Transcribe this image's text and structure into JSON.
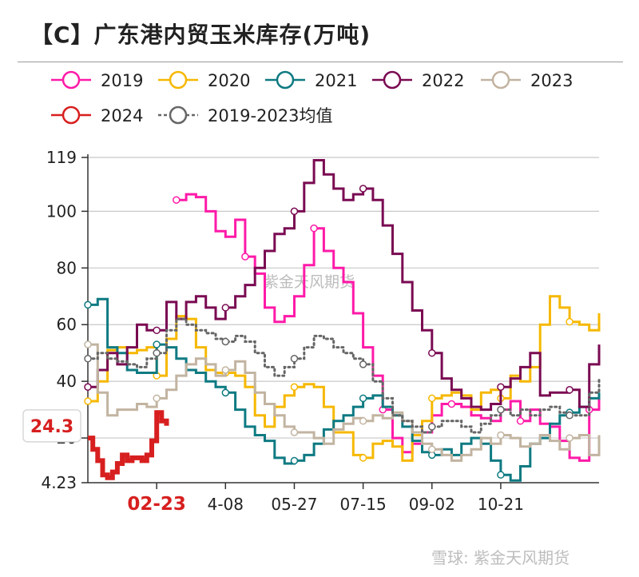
{
  "title": "【C】广东港内贸玉米库存(万吨)",
  "watermark": {
    "center_text": "紫金天风期货",
    "corner_text": "雪球: 紫金天风期货"
  },
  "chart_data": {
    "type": "line",
    "title": "【C】广东港内贸玉米库存(万吨)",
    "xlabel": "",
    "ylabel": "",
    "ylim": [
      4.23,
      119
    ],
    "yticks": [
      {
        "value": 119,
        "label": "119"
      },
      {
        "value": 100,
        "label": "100"
      },
      {
        "value": 80,
        "label": "80"
      },
      {
        "value": 60,
        "label": "60"
      },
      {
        "value": 40,
        "label": "40"
      },
      {
        "value": 20,
        "label": "20"
      },
      {
        "value": 4.23,
        "label": "4.23"
      }
    ],
    "xlim": [
      0,
      52
    ],
    "xticks": [
      {
        "pos": 7,
        "label": "02-23",
        "highlight": true
      },
      {
        "pos": 14,
        "label": "4-08",
        "highlight": false
      },
      {
        "pos": 21,
        "label": "05-27",
        "highlight": false
      },
      {
        "pos": 28,
        "label": "07-15",
        "highlight": false
      },
      {
        "pos": 35,
        "label": "09-02",
        "highlight": false
      },
      {
        "pos": 42,
        "label": "10-21",
        "highlight": false
      }
    ],
    "grid": true,
    "legend_position": "top",
    "callout": {
      "label": "24.3",
      "value": 24.3
    },
    "series": [
      {
        "name": "2019",
        "color": "#ff1aa8",
        "dotted": false,
        "width": 3,
        "x": [
          9,
          10,
          11,
          12,
          13,
          14,
          15,
          16,
          17,
          18,
          19,
          20,
          21,
          22,
          23,
          24,
          25,
          26,
          27,
          28,
          29,
          30,
          31,
          32,
          33,
          34,
          35,
          36,
          37,
          38,
          39,
          40,
          41,
          42,
          43,
          44,
          45,
          46,
          47,
          48,
          49,
          50,
          51,
          52
        ],
        "y": [
          104,
          106,
          105,
          100,
          93,
          91,
          97,
          84,
          78,
          66,
          61,
          63,
          70,
          81,
          94,
          86,
          80,
          75,
          64,
          52,
          42,
          30,
          20,
          15,
          18,
          22,
          28,
          32,
          32,
          31,
          28,
          27,
          26,
          30,
          33,
          26,
          30,
          25,
          24,
          19,
          13,
          12,
          30,
          35
        ]
      },
      {
        "name": "2020",
        "color": "#f6b800",
        "dotted": false,
        "width": 3,
        "x": [
          0,
          1,
          2,
          3,
          4,
          5,
          6,
          7,
          8,
          9,
          10,
          11,
          12,
          13,
          14,
          15,
          16,
          17,
          18,
          19,
          20,
          21,
          22,
          23,
          24,
          25,
          26,
          27,
          28,
          29,
          30,
          31,
          32,
          33,
          34,
          35,
          36,
          37,
          38,
          39,
          40,
          41,
          42,
          43,
          44,
          45,
          46,
          47,
          48,
          49,
          50,
          51,
          52
        ],
        "y": [
          33,
          40,
          51,
          52,
          50,
          51,
          52,
          42,
          55,
          63,
          62,
          52,
          44,
          43,
          43,
          42,
          38,
          28,
          24,
          31,
          35,
          38,
          39,
          38,
          31,
          22,
          22,
          14,
          13,
          18,
          19,
          17,
          12,
          21,
          26,
          34,
          35,
          36,
          35,
          30,
          36,
          37,
          34,
          42,
          40,
          45,
          60,
          70,
          66,
          61,
          60,
          58,
          64
        ]
      },
      {
        "name": "2021",
        "color": "#0e7a82",
        "dotted": false,
        "width": 3,
        "x": [
          0,
          1,
          2,
          3,
          4,
          5,
          6,
          7,
          8,
          9,
          10,
          11,
          12,
          13,
          14,
          15,
          16,
          17,
          18,
          19,
          20,
          21,
          22,
          23,
          24,
          25,
          26,
          27,
          28,
          29,
          30,
          31,
          32,
          33,
          34,
          35,
          36,
          37,
          38,
          39,
          40,
          41,
          42,
          43,
          44,
          45,
          46,
          47,
          48,
          49,
          50,
          51,
          52
        ],
        "y": [
          67,
          69,
          52,
          50,
          44,
          43,
          43,
          53,
          52,
          48,
          44,
          43,
          40,
          38,
          36,
          30,
          24,
          21,
          19,
          13,
          11,
          12,
          14,
          18,
          23,
          26,
          28,
          31,
          34,
          35,
          31,
          28,
          24,
          19,
          15,
          14,
          16,
          14,
          18,
          20,
          18,
          12,
          7,
          5,
          10,
          18,
          20,
          25,
          28,
          29,
          31,
          34,
          36
        ]
      },
      {
        "name": "2022",
        "color": "#7a0a52",
        "dotted": false,
        "width": 3,
        "x": [
          0,
          1,
          2,
          3,
          4,
          5,
          6,
          7,
          8,
          9,
          10,
          11,
          12,
          13,
          14,
          15,
          16,
          17,
          18,
          19,
          20,
          21,
          22,
          23,
          24,
          25,
          26,
          27,
          28,
          29,
          30,
          31,
          32,
          33,
          34,
          35,
          36,
          37,
          38,
          39,
          40,
          41,
          42,
          43,
          44,
          45,
          46,
          47,
          48,
          49,
          50,
          51,
          52
        ],
        "y": [
          38,
          44,
          50,
          46,
          52,
          60,
          58,
          58,
          68,
          62,
          68,
          70,
          66,
          62,
          66,
          70,
          74,
          80,
          86,
          92,
          94,
          100,
          110,
          118,
          113,
          108,
          104,
          106,
          108,
          104,
          95,
          85,
          75,
          65,
          58,
          50,
          41,
          37,
          34,
          31,
          30,
          32,
          38,
          41,
          45,
          50,
          35,
          36,
          36,
          37,
          31,
          46,
          53
        ]
      },
      {
        "name": "2023",
        "color": "#c2b4a1",
        "dotted": false,
        "width": 3,
        "x": [
          0,
          1,
          2,
          3,
          4,
          5,
          6,
          7,
          8,
          9,
          10,
          11,
          12,
          13,
          14,
          15,
          16,
          17,
          18,
          19,
          20,
          21,
          22,
          23,
          24,
          25,
          26,
          27,
          28,
          29,
          30,
          31,
          32,
          33,
          34,
          35,
          36,
          37,
          38,
          39,
          40,
          41,
          42,
          43,
          44,
          45,
          46,
          47,
          48,
          49,
          50,
          51,
          52
        ],
        "y": [
          53,
          36,
          28,
          30,
          30,
          32,
          31,
          34,
          37,
          42,
          46,
          48,
          46,
          42,
          44,
          47,
          43,
          36,
          32,
          28,
          24,
          22,
          22,
          20,
          18,
          23,
          25,
          27,
          26,
          28,
          27,
          29,
          26,
          22,
          18,
          16,
          14,
          12,
          14,
          16,
          20,
          18,
          21,
          20,
          17,
          18,
          21,
          19,
          16,
          20,
          21,
          14,
          21
        ]
      },
      {
        "name": "2024",
        "color": "#d71f1f",
        "dotted": false,
        "width": 6,
        "x": [
          0,
          0.5,
          1,
          1.5,
          2,
          2.5,
          3,
          3.5,
          4,
          4.5,
          5,
          5.5,
          6,
          6.5,
          7,
          7.5,
          8
        ],
        "y": [
          20,
          16,
          12,
          7,
          6,
          8,
          11,
          14,
          12,
          13,
          13,
          12,
          14,
          19,
          29,
          26,
          24.3
        ]
      },
      {
        "name": "2019-2023均值",
        "color": "#666666",
        "dotted": true,
        "width": 3,
        "x": [
          0,
          1,
          2,
          3,
          4,
          5,
          6,
          7,
          8,
          9,
          10,
          11,
          12,
          13,
          14,
          15,
          16,
          17,
          18,
          19,
          20,
          21,
          22,
          23,
          24,
          25,
          26,
          27,
          28,
          29,
          30,
          31,
          32,
          33,
          34,
          35,
          36,
          37,
          38,
          39,
          40,
          41,
          42,
          43,
          44,
          45,
          46,
          47,
          48,
          49,
          50,
          51,
          52
        ],
        "y": [
          48,
          50,
          48,
          47,
          46,
          45,
          48,
          50,
          58,
          62,
          60,
          58,
          57,
          55,
          54,
          56,
          54,
          50,
          45,
          42,
          45,
          48,
          52,
          56,
          55,
          52,
          50,
          48,
          46,
          40,
          34,
          28,
          26,
          24,
          22,
          24,
          26,
          26,
          24,
          22,
          25,
          28,
          30,
          28,
          30,
          28,
          30,
          31,
          29,
          28,
          28,
          36,
          41
        ]
      }
    ]
  }
}
